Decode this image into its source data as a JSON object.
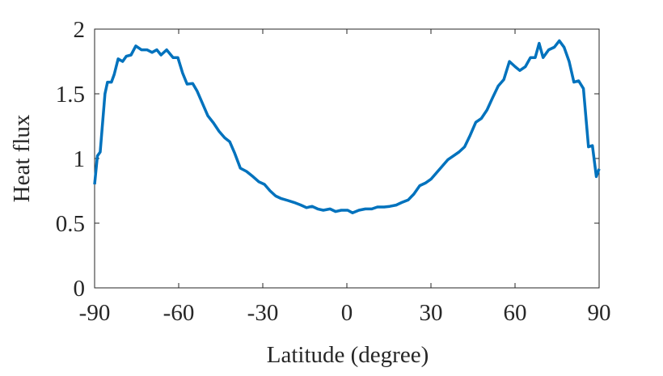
{
  "chart_data": {
    "type": "line",
    "xlabel": "Latitude (degree)",
    "ylabel": "Heat flux",
    "color": "#0072bd",
    "x": [
      -90,
      -89,
      -88,
      -86.3,
      -85.4,
      -84,
      -83,
      -81.6,
      -80,
      -78.7,
      -77,
      -75.3,
      -73.3,
      -71.3,
      -69.5,
      -67.8,
      -66.3,
      -64.3,
      -62,
      -60.3,
      -58.6,
      -57,
      -55,
      -53.4,
      -51.6,
      -49.6,
      -47.6,
      -45.6,
      -43.6,
      -41.8,
      -40,
      -38,
      -35.8,
      -33.5,
      -31.4,
      -29.4,
      -27.4,
      -25.4,
      -23.4,
      -21,
      -18.8,
      -16.4,
      -14.4,
      -12.4,
      -10.4,
      -8.4,
      -6,
      -4,
      -2,
      0.3,
      2,
      4.3,
      6.6,
      8.9,
      10.9,
      13.3,
      15.3,
      17.6,
      19.6,
      21.9,
      23.9,
      26,
      28,
      30,
      32,
      34,
      36,
      38,
      40,
      42,
      44,
      46,
      48,
      50,
      52,
      54,
      56,
      58,
      60,
      61.7,
      63.7,
      65.5,
      67.2,
      68.6,
      70,
      72,
      74,
      75.8,
      77.5,
      79.3,
      81,
      82.7,
      84.4,
      86.2,
      87.6,
      89,
      90
    ],
    "values": [
      0.8,
      1.02,
      1.05,
      1.5,
      1.59,
      1.59,
      1.65,
      1.77,
      1.75,
      1.79,
      1.8,
      1.87,
      1.84,
      1.84,
      1.82,
      1.84,
      1.8,
      1.84,
      1.78,
      1.78,
      1.66,
      1.575,
      1.58,
      1.52,
      1.43,
      1.33,
      1.275,
      1.21,
      1.16,
      1.13,
      1.04,
      0.925,
      0.9,
      0.86,
      0.82,
      0.8,
      0.75,
      0.71,
      0.69,
      0.675,
      0.66,
      0.64,
      0.62,
      0.63,
      0.61,
      0.6,
      0.61,
      0.59,
      0.6,
      0.6,
      0.58,
      0.6,
      0.61,
      0.61,
      0.625,
      0.625,
      0.63,
      0.64,
      0.66,
      0.68,
      0.725,
      0.79,
      0.81,
      0.84,
      0.89,
      0.94,
      0.99,
      1.02,
      1.05,
      1.09,
      1.18,
      1.28,
      1.31,
      1.375,
      1.47,
      1.56,
      1.61,
      1.75,
      1.71,
      1.68,
      1.71,
      1.78,
      1.78,
      1.89,
      1.78,
      1.84,
      1.86,
      1.91,
      1.86,
      1.75,
      1.59,
      1.6,
      1.54,
      1.09,
      1.1,
      0.86,
      0.92
    ],
    "xlim": [
      -90,
      90
    ],
    "xticks": [
      -90,
      -60,
      -30,
      0,
      30,
      60,
      90
    ],
    "ylim": [
      0,
      2
    ],
    "yticks": [
      0,
      0.5,
      1,
      1.5,
      2
    ]
  }
}
